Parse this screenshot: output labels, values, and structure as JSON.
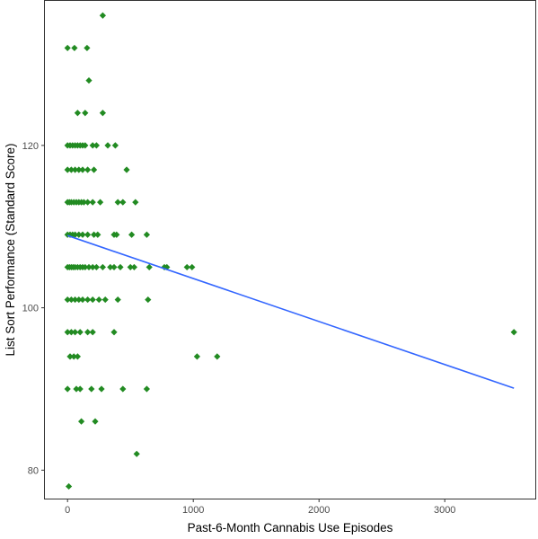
{
  "chart_data": {
    "type": "scatter",
    "xlabel": "Past-6-Month Cannabis Use Episodes",
    "ylabel": "List Sort Performance (Standard Score)",
    "xlim": [
      -180,
      3720
    ],
    "ylim": [
      76.5,
      137.8
    ],
    "x_ticks": [
      0,
      1000,
      2000,
      3000
    ],
    "y_ticks": [
      80,
      100,
      120
    ],
    "grid": false,
    "legend": "none",
    "point_color": "#228B22",
    "line_color": "#3366FF",
    "series": [
      {
        "values": [
          [
            280,
            136
          ],
          [
            0,
            132
          ],
          [
            55,
            132
          ],
          [
            155,
            132
          ],
          [
            170,
            128
          ],
          [
            80,
            124
          ],
          [
            140,
            124
          ],
          [
            280,
            124
          ],
          [
            0,
            120
          ],
          [
            20,
            120
          ],
          [
            40,
            120
          ],
          [
            60,
            120
          ],
          [
            80,
            120
          ],
          [
            100,
            120
          ],
          [
            120,
            120
          ],
          [
            140,
            120
          ],
          [
            200,
            120
          ],
          [
            230,
            120
          ],
          [
            320,
            120
          ],
          [
            380,
            120
          ],
          [
            0,
            117
          ],
          [
            30,
            117
          ],
          [
            60,
            117
          ],
          [
            90,
            117
          ],
          [
            120,
            117
          ],
          [
            160,
            117
          ],
          [
            210,
            117
          ],
          [
            470,
            117
          ],
          [
            0,
            113
          ],
          [
            15,
            113
          ],
          [
            30,
            113
          ],
          [
            50,
            113
          ],
          [
            70,
            113
          ],
          [
            90,
            113
          ],
          [
            110,
            113
          ],
          [
            130,
            113
          ],
          [
            160,
            113
          ],
          [
            200,
            113
          ],
          [
            260,
            113
          ],
          [
            400,
            113
          ],
          [
            440,
            113
          ],
          [
            540,
            113
          ],
          [
            0,
            109
          ],
          [
            20,
            109
          ],
          [
            40,
            109
          ],
          [
            60,
            109
          ],
          [
            90,
            109
          ],
          [
            120,
            109
          ],
          [
            160,
            109
          ],
          [
            210,
            109
          ],
          [
            240,
            109
          ],
          [
            370,
            109
          ],
          [
            390,
            109
          ],
          [
            510,
            109
          ],
          [
            630,
            109
          ],
          [
            0,
            105
          ],
          [
            15,
            105
          ],
          [
            30,
            105
          ],
          [
            45,
            105
          ],
          [
            60,
            105
          ],
          [
            80,
            105
          ],
          [
            100,
            105
          ],
          [
            120,
            105
          ],
          [
            140,
            105
          ],
          [
            170,
            105
          ],
          [
            200,
            105
          ],
          [
            230,
            105
          ],
          [
            280,
            105
          ],
          [
            340,
            105
          ],
          [
            370,
            105
          ],
          [
            420,
            105
          ],
          [
            500,
            105
          ],
          [
            530,
            105
          ],
          [
            650,
            105
          ],
          [
            770,
            105
          ],
          [
            790,
            105
          ],
          [
            950,
            105
          ],
          [
            990,
            105
          ],
          [
            0,
            101
          ],
          [
            30,
            101
          ],
          [
            60,
            101
          ],
          [
            90,
            101
          ],
          [
            120,
            101
          ],
          [
            160,
            101
          ],
          [
            200,
            101
          ],
          [
            250,
            101
          ],
          [
            300,
            101
          ],
          [
            400,
            101
          ],
          [
            640,
            101
          ],
          [
            0,
            97
          ],
          [
            30,
            97
          ],
          [
            60,
            97
          ],
          [
            100,
            97
          ],
          [
            160,
            97
          ],
          [
            200,
            97
          ],
          [
            370,
            97
          ],
          [
            3550,
            97
          ],
          [
            20,
            94
          ],
          [
            50,
            94
          ],
          [
            80,
            94
          ],
          [
            1030,
            94
          ],
          [
            1190,
            94
          ],
          [
            0,
            90
          ],
          [
            70,
            90
          ],
          [
            100,
            90
          ],
          [
            190,
            90
          ],
          [
            270,
            90
          ],
          [
            440,
            90
          ],
          [
            630,
            90
          ],
          [
            110,
            86
          ],
          [
            220,
            86
          ],
          [
            550,
            82
          ],
          [
            10,
            78
          ]
        ]
      }
    ],
    "trend_line": {
      "x": [
        0,
        3550
      ],
      "y": [
        108.9,
        90.1
      ]
    }
  }
}
